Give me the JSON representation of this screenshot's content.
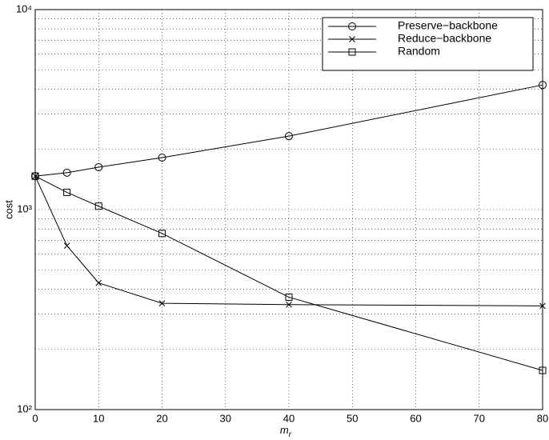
{
  "chart_data": {
    "type": "line",
    "y_label": "cost",
    "x_label": "m",
    "x_label_sub": "r",
    "x": [
      0,
      5,
      10,
      20,
      40,
      80
    ],
    "series": [
      {
        "name": "Preserve−backbone",
        "color": "#000000",
        "marker": "circle",
        "values": [
          1470,
          1530,
          1630,
          1820,
          2330,
          4200
        ]
      },
      {
        "name": "Reduce−backbone",
        "color": "#000000",
        "marker": "x",
        "values": [
          1470,
          660,
          430,
          340,
          335,
          330
        ]
      },
      {
        "name": "Random",
        "color": "#000000",
        "marker": "square",
        "values": [
          1470,
          1220,
          1040,
          760,
          365,
          157
        ]
      }
    ],
    "xlim": [
      0,
      80
    ],
    "xticks": [
      0,
      10,
      20,
      30,
      40,
      50,
      60,
      70,
      80
    ],
    "ylim": [
      100,
      10000
    ],
    "log_y": true,
    "yticks": [
      {
        "value": 100,
        "label": "10²"
      },
      {
        "value": 1000,
        "label": "10³"
      },
      {
        "value": 10000,
        "label": "10⁴"
      }
    ],
    "yticks_minor": [
      200,
      300,
      400,
      500,
      600,
      700,
      800,
      900,
      2000,
      3000,
      4000,
      5000,
      6000,
      7000,
      8000,
      9000
    ],
    "grid": true,
    "legend": "upper right"
  }
}
